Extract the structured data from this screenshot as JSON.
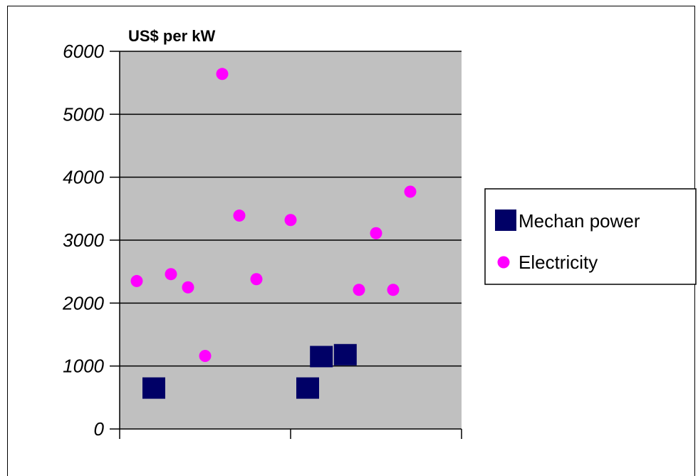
{
  "chart_data": {
    "type": "scatter",
    "title": "US$ per kW",
    "xlabel": "",
    "ylabel": "",
    "ylim": [
      0,
      6000
    ],
    "xlim": [
      0,
      20
    ],
    "yticks": [
      "0",
      "1000",
      "2000",
      "3000",
      "4000",
      "5000",
      "6000"
    ],
    "grid": true,
    "legend_position": "right",
    "plot_background": "#c0c0c0",
    "series": [
      {
        "name": "Mechan power",
        "marker": "square",
        "color": "#000066",
        "points": [
          {
            "x": 2,
            "y": 650
          },
          {
            "x": 11,
            "y": 650
          },
          {
            "x": 11.8,
            "y": 1150
          },
          {
            "x": 13.2,
            "y": 1180
          }
        ]
      },
      {
        "name": "Electricity",
        "marker": "circle",
        "color": "#ff00ff",
        "points": [
          {
            "x": 1,
            "y": 2350
          },
          {
            "x": 3,
            "y": 2460
          },
          {
            "x": 4,
            "y": 2250
          },
          {
            "x": 5,
            "y": 1160
          },
          {
            "x": 6,
            "y": 5640
          },
          {
            "x": 7,
            "y": 3390
          },
          {
            "x": 8,
            "y": 2380
          },
          {
            "x": 10,
            "y": 3320
          },
          {
            "x": 14,
            "y": 2210
          },
          {
            "x": 15,
            "y": 3110
          },
          {
            "x": 16,
            "y": 2210
          },
          {
            "x": 17,
            "y": 3770
          }
        ]
      }
    ]
  }
}
